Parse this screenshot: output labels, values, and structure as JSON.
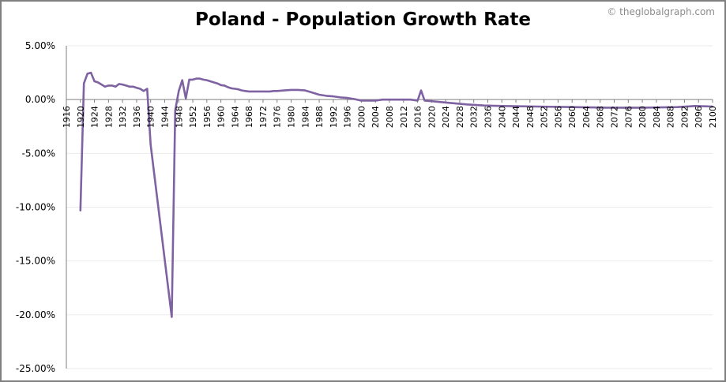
{
  "title": "Poland - Population Growth Rate",
  "credit": "© theglobalgraph.com",
  "colors": {
    "line": "#7e62a1",
    "grid": "#ebebeb",
    "axis": "#7f7f7f",
    "frame": "#7f7f7f"
  },
  "chart_data": {
    "type": "line",
    "title": "Poland - Population Growth Rate",
    "xlabel": "",
    "ylabel": "",
    "xlim": [
      1916,
      2100
    ],
    "ylim": [
      -25,
      5
    ],
    "y_ticks": [
      5,
      0,
      -5,
      -10,
      -15,
      -20,
      -25
    ],
    "y_tick_labels": [
      "5.00%",
      "0.00%",
      "-5.00%",
      "-10.00%",
      "-15.00%",
      "-20.00%",
      "-25.00%"
    ],
    "x_tick_labels": [
      "1916",
      "1920",
      "1924",
      "1928",
      "1932",
      "1936",
      "1940",
      "1944",
      "1948",
      "1952",
      "1956",
      "1960",
      "1964",
      "1968",
      "1972",
      "1976",
      "1980",
      "1984",
      "1988",
      "1992",
      "1996",
      "2000",
      "2004",
      "2008",
      "2012",
      "2016",
      "2020",
      "2024",
      "2028",
      "2032",
      "2036",
      "2040",
      "2044",
      "2048",
      "2052",
      "2056",
      "2060",
      "2064",
      "2068",
      "2072",
      "2076",
      "2080",
      "2084",
      "2088",
      "2092",
      "2096",
      "2100"
    ],
    "grid": true,
    "series": [
      {
        "name": "",
        "x": [
          1920,
          1921,
          1922,
          1923,
          1924,
          1925,
          1926,
          1927,
          1928,
          1929,
          1930,
          1931,
          1932,
          1933,
          1934,
          1935,
          1936,
          1937,
          1938,
          1939,
          1940,
          1946,
          1947,
          1948,
          1949,
          1950,
          1951,
          1952,
          1953,
          1954,
          1955,
          1956,
          1957,
          1958,
          1959,
          1960,
          1961,
          1962,
          1963,
          1964,
          1965,
          1966,
          1967,
          1968,
          1970,
          1972,
          1974,
          1975,
          1976,
          1978,
          1980,
          1982,
          1984,
          1986,
          1988,
          1990,
          1992,
          1994,
          1996,
          1998,
          2000,
          2002,
          2004,
          2006,
          2008,
          2010,
          2012,
          2014,
          2016,
          2017,
          2018,
          2020,
          2025,
          2030,
          2035,
          2040,
          2050,
          2060,
          2070,
          2080,
          2090,
          2095,
          2100
        ],
        "values": [
          -10.3,
          1.5,
          2.4,
          2.5,
          1.7,
          1.6,
          1.4,
          1.2,
          1.3,
          1.3,
          1.2,
          1.45,
          1.4,
          1.3,
          1.2,
          1.2,
          1.1,
          1.0,
          0.8,
          1.0,
          -4.2,
          -20.2,
          -1.0,
          0.8,
          1.8,
          0.1,
          1.85,
          1.85,
          1.95,
          1.95,
          1.85,
          1.8,
          1.7,
          1.6,
          1.5,
          1.35,
          1.3,
          1.15,
          1.05,
          1.0,
          0.95,
          0.85,
          0.8,
          0.75,
          0.75,
          0.75,
          0.75,
          0.8,
          0.8,
          0.85,
          0.9,
          0.9,
          0.85,
          0.65,
          0.45,
          0.35,
          0.3,
          0.2,
          0.15,
          0.05,
          -0.1,
          -0.1,
          -0.1,
          0.0,
          0.0,
          0.0,
          0.0,
          0.0,
          -0.1,
          0.85,
          -0.1,
          -0.15,
          -0.3,
          -0.45,
          -0.55,
          -0.6,
          -0.65,
          -0.7,
          -0.75,
          -0.75,
          -0.7,
          -0.6,
          -0.65
        ]
      }
    ]
  }
}
